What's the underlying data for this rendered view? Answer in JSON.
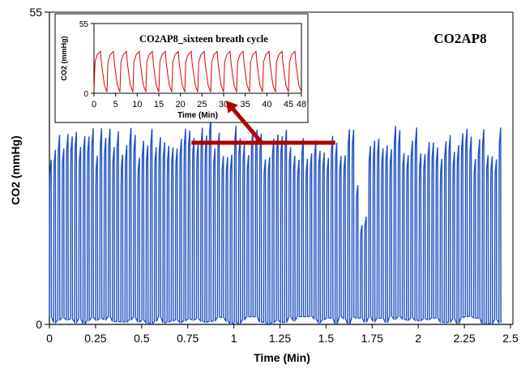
{
  "chart_data": [
    {
      "type": "line",
      "title": "CO2AP8",
      "xlabel": "Time (Min)",
      "ylabel": "CO2 (mmHg)",
      "xlim": [
        0,
        2.5
      ],
      "ylim": [
        0,
        55
      ],
      "x_ticks": [
        "0",
        "0.25",
        "0.5",
        "0.75",
        "1",
        "1.25",
        "1.5",
        "1.75",
        "2",
        "2.25",
        "2.5"
      ],
      "y_ticks": [
        "0",
        "55"
      ],
      "grid": false,
      "series": [
        {
          "color": "#1f4fc4",
          "waveform": "capnogram",
          "x_range": [
            0,
            2.46
          ],
          "breath_count": 108,
          "peak_values_mmHg": [
            29,
            35
          ],
          "baseline_mmHg": 0,
          "low_amplitude_segment": {
            "x_range": [
              1.66,
              1.74
            ],
            "peak_mmHg": [
              15,
              25
            ]
          }
        }
      ]
    },
    {
      "type": "line",
      "title": "CO2AP8_sixteen breath cycle",
      "xlabel": "Time (Min)",
      "ylabel": "CO2 (mmHg)",
      "xlim": [
        0,
        48
      ],
      "ylim": [
        0,
        55
      ],
      "x_ticks": [
        "0",
        "5",
        "10",
        "15",
        "20",
        "25",
        "30",
        "35",
        "40",
        "45",
        "48"
      ],
      "y_ticks": [
        "0",
        "55"
      ],
      "grid": false,
      "series": [
        {
          "color": "#e00000",
          "waveform": "capnogram",
          "breath_count": 16,
          "peak_value_mmHg": 33,
          "baseline_mmHg": 0
        }
      ]
    }
  ],
  "callout": {
    "color": "#b00000",
    "x_range": [
      0.77,
      1.55
    ],
    "y_value": 32
  }
}
